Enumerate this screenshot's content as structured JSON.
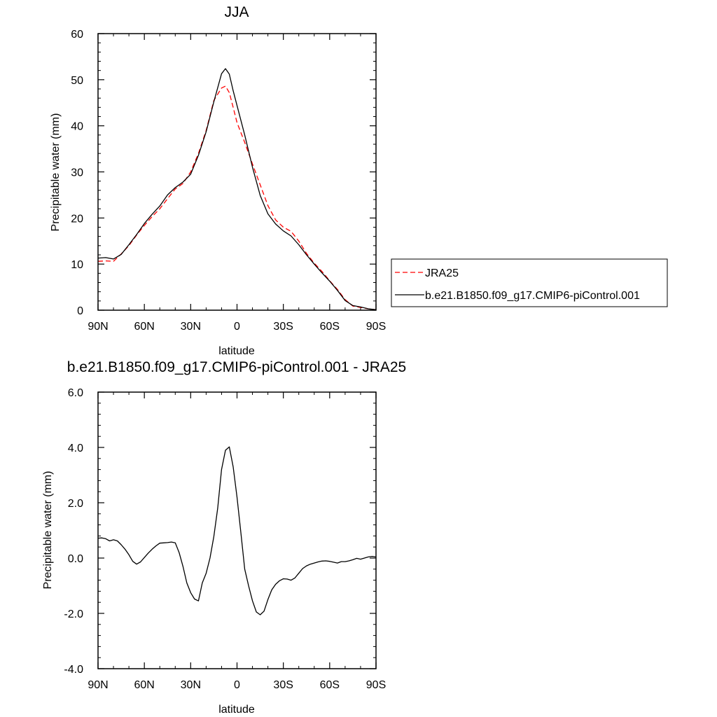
{
  "chart_data": [
    {
      "type": "line",
      "title": "JJA",
      "xlabel": "latitude",
      "ylabel": "Precipitable water (mm)",
      "xlim": [
        90,
        -90
      ],
      "ylim": [
        0,
        60
      ],
      "xticks": [
        90,
        60,
        30,
        0,
        -30,
        -60,
        -90
      ],
      "xtick_labels": [
        "90N",
        "60N",
        "30N",
        "0",
        "30S",
        "60S",
        "90S"
      ],
      "yticks": [
        0,
        10,
        20,
        30,
        40,
        50,
        60
      ],
      "ytick_labels": [
        "0",
        "10",
        "20",
        "30",
        "40",
        "50",
        "60"
      ],
      "legend_placement": "right",
      "series": [
        {
          "name": "JRA25",
          "color": "#ff0000",
          "dash": "dashed",
          "x": [
            90,
            85,
            80,
            75,
            70,
            65,
            60,
            55,
            50,
            45,
            40,
            35,
            30,
            25,
            20,
            15,
            10,
            7.5,
            5,
            2.5,
            0,
            -5,
            -10,
            -15,
            -20,
            -25,
            -30,
            -35,
            -40,
            -45,
            -50,
            -55,
            -60,
            -65,
            -70,
            -75,
            -80,
            -85,
            -90
          ],
          "y": [
            10.6,
            10.7,
            10.6,
            12.2,
            14.0,
            16.3,
            18.4,
            20.3,
            22.0,
            24.2,
            26.3,
            27.5,
            30.0,
            34.0,
            39.0,
            45.5,
            48.2,
            48.6,
            47.2,
            44.0,
            40.7,
            36.4,
            31.7,
            27.2,
            22.7,
            19.6,
            18.0,
            17.1,
            15.0,
            12.3,
            10.2,
            8.4,
            6.4,
            4.5,
            2.3,
            0.9,
            0.6,
            0.3,
            0.1
          ]
        },
        {
          "name": "b.e21.B1850.f09_g17.CMIP6-piControl.001",
          "color": "#000000",
          "dash": "solid",
          "x": [
            90,
            85,
            80,
            75,
            70,
            65,
            60,
            55,
            50,
            45,
            40,
            35,
            30,
            25,
            20,
            15,
            10,
            7.5,
            5,
            2.5,
            0,
            -5,
            -10,
            -15,
            -20,
            -25,
            -30,
            -35,
            -40,
            -45,
            -50,
            -55,
            -60,
            -65,
            -70,
            -75,
            -80,
            -85,
            -90
          ],
          "y": [
            11.3,
            11.4,
            11.1,
            12.1,
            14.2,
            16.4,
            18.8,
            20.8,
            22.6,
            25.0,
            26.6,
            27.8,
            29.5,
            33.6,
            38.7,
            45.2,
            51.3,
            52.4,
            51.2,
            47.6,
            44.4,
            38.0,
            31.0,
            24.9,
            20.9,
            18.7,
            17.2,
            16.1,
            14.2,
            12.0,
            10.0,
            8.1,
            6.3,
            4.3,
            2.1,
            1.0,
            0.7,
            0.3,
            0.1
          ]
        }
      ]
    },
    {
      "type": "line",
      "title": "b.e21.B1850.f09_g17.CMIP6-piControl.001 - JRA25",
      "xlabel": "latitude",
      "ylabel": "Precipitable water (mm)",
      "xlim": [
        90,
        -90
      ],
      "ylim": [
        -4,
        6
      ],
      "xticks": [
        90,
        60,
        30,
        0,
        -30,
        -60,
        -90
      ],
      "xtick_labels": [
        "90N",
        "60N",
        "30N",
        "0",
        "30S",
        "60S",
        "90S"
      ],
      "yticks": [
        -4,
        -2,
        0,
        2,
        4,
        6
      ],
      "ytick_labels": [
        "-4.0",
        "-2.0",
        "0.0",
        "2.0",
        "4.0",
        "6.0"
      ],
      "series": [
        {
          "color": "#000000",
          "dash": "solid",
          "x": [
            90,
            87.5,
            85,
            82.5,
            80,
            77.5,
            75,
            72.5,
            70,
            67.5,
            65,
            62.5,
            60,
            57.5,
            55,
            52.5,
            50,
            47.5,
            45,
            42.5,
            40,
            37.5,
            35,
            32.5,
            30,
            27.5,
            25,
            22.5,
            20,
            17.5,
            15,
            12.5,
            10,
            7.5,
            5,
            2.5,
            0,
            -2.5,
            -5,
            -7.5,
            -10,
            -12.5,
            -15,
            -17.5,
            -20,
            -22.5,
            -25,
            -27.5,
            -30,
            -32.5,
            -35,
            -37.5,
            -40,
            -42.5,
            -45,
            -47.5,
            -50,
            -52.5,
            -55,
            -57.5,
            -60,
            -62.5,
            -65,
            -67.5,
            -70,
            -72.5,
            -75,
            -77.5,
            -80,
            -82.5,
            -85,
            -87.5,
            -90
          ],
          "y": [
            0.72,
            0.73,
            0.7,
            0.62,
            0.66,
            0.62,
            0.48,
            0.32,
            0.12,
            -0.12,
            -0.22,
            -0.14,
            0.02,
            0.18,
            0.32,
            0.44,
            0.54,
            0.55,
            0.56,
            0.58,
            0.55,
            0.2,
            -0.3,
            -0.9,
            -1.25,
            -1.48,
            -1.55,
            -0.9,
            -0.55,
            0.0,
            0.78,
            1.8,
            3.2,
            3.9,
            4.02,
            3.3,
            2.2,
            0.92,
            -0.4,
            -1.0,
            -1.55,
            -1.95,
            -2.05,
            -1.92,
            -1.5,
            -1.15,
            -0.95,
            -0.82,
            -0.75,
            -0.76,
            -0.8,
            -0.72,
            -0.55,
            -0.38,
            -0.28,
            -0.22,
            -0.18,
            -0.14,
            -0.11,
            -0.1,
            -0.12,
            -0.15,
            -0.18,
            -0.13,
            -0.13,
            -0.1,
            -0.06,
            -0.01,
            -0.04,
            0.0,
            0.04,
            0.06,
            0.04
          ]
        }
      ]
    }
  ]
}
